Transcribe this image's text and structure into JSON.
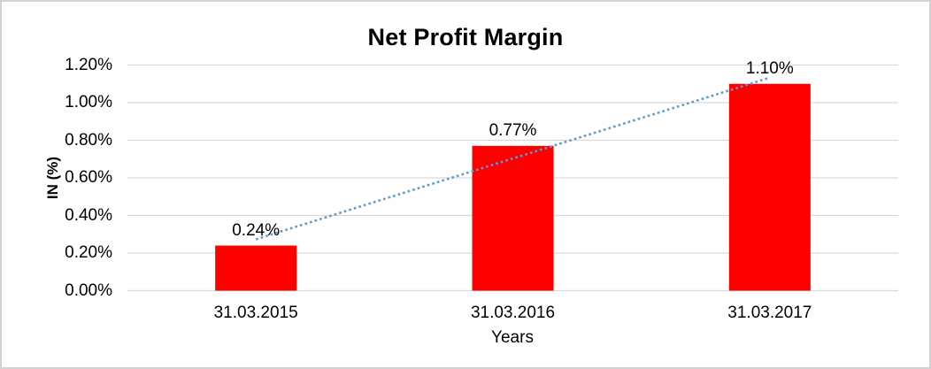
{
  "chart_data": {
    "type": "bar",
    "title": "Net Profit Margin",
    "categories": [
      "31.03.2015",
      "31.03.2016",
      "31.03.2017"
    ],
    "values": [
      0.24,
      0.77,
      1.1
    ],
    "data_labels": [
      "0.24%",
      "0.77%",
      "1.10%"
    ],
    "xlabel": "Years",
    "ylabel": "IN (%)",
    "ylim": [
      0,
      1.2
    ],
    "ytick_step": 0.2,
    "ytick_labels": [
      "0.00%",
      "0.20%",
      "0.40%",
      "0.60%",
      "0.80%",
      "1.00%",
      "1.20%"
    ],
    "grid": true,
    "legend": "none",
    "colors": {
      "bar": "#FF0000",
      "trendline": "#5B9BD5",
      "gridline": "#D9D9D9",
      "text": "#000000",
      "background": "#FFFFFF",
      "border": "#D2D2D2"
    },
    "trendline": {
      "type": "linear",
      "style": "dotted",
      "start_value": 0.273,
      "end_value": 1.133
    }
  }
}
